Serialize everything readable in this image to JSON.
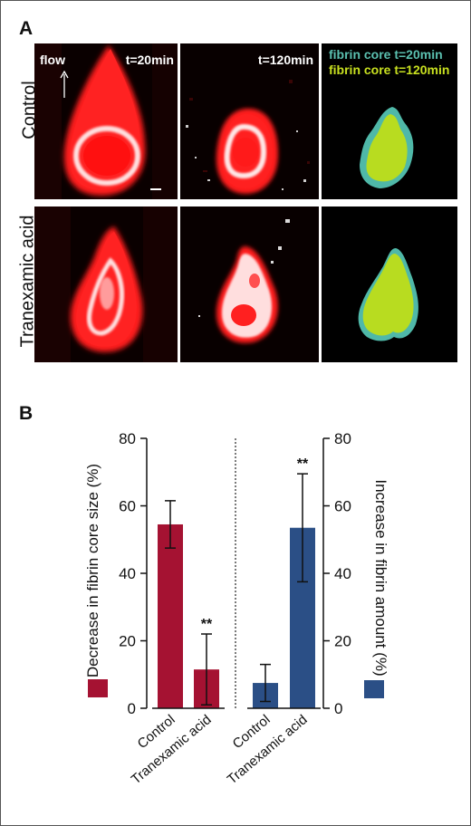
{
  "panel_a": {
    "letter": "A",
    "row_labels": [
      "Control",
      "Tranexamic acid"
    ],
    "flow_label": "flow",
    "time_labels": [
      "t=20min",
      "t=120min"
    ],
    "legend": [
      {
        "label": "fibrin core t=20min",
        "color": "#5bc0b0"
      },
      {
        "label": "fibrin core t=120min",
        "color": "#c8e020"
      }
    ],
    "colors": {
      "thrombus": "#ff1a1a",
      "fibrin": "#ffffff",
      "core_20": "#4fb8a8",
      "core_120": "#b8dc20"
    }
  },
  "panel_b": {
    "letter": "B"
  },
  "chart_data": [
    {
      "type": "bar",
      "categories": [
        "Control",
        "Tranexamic acid"
      ],
      "values": [
        54.5,
        11.5
      ],
      "errors": [
        7,
        10.5
      ],
      "annotations": [
        "",
        "**"
      ],
      "ylabel": "Decrease in fibrin core size (%)",
      "ylim": [
        0,
        80
      ],
      "yticks": [
        "0",
        "20",
        "40",
        "60",
        "80"
      ],
      "color": "#a51232",
      "axis_side": "left"
    },
    {
      "type": "bar",
      "categories": [
        "Control",
        "Tranexamic acid"
      ],
      "values": [
        7.5,
        53.5
      ],
      "errors": [
        5.5,
        16
      ],
      "annotations": [
        "",
        "**"
      ],
      "ylabel": "Increase in fibrin amount (%)",
      "ylim": [
        0,
        80
      ],
      "yticks": [
        "0",
        "20",
        "40",
        "60",
        "80"
      ],
      "color": "#2b4f86",
      "axis_side": "right"
    }
  ]
}
